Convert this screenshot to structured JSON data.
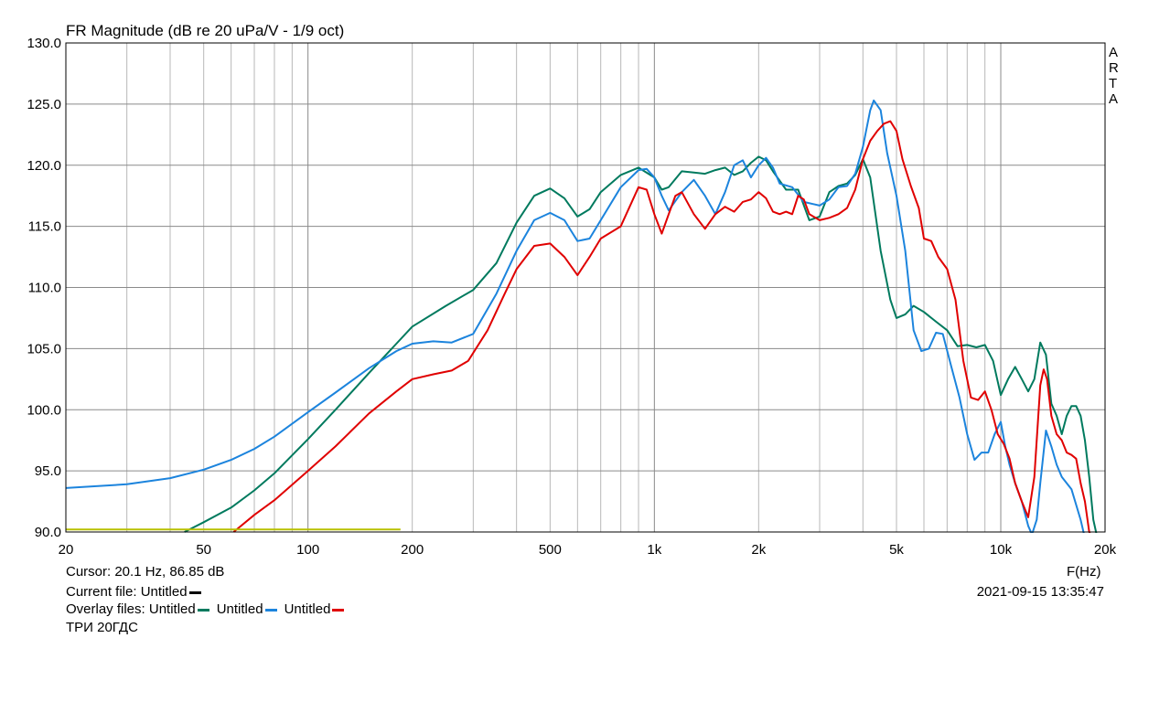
{
  "chart_data": {
    "type": "line",
    "title": "FR Magnitude (dB re 20 uPa/V - 1/9 oct)",
    "xlabel": "F(Hz)",
    "ylabel": "",
    "x_scale": "log",
    "xlim": [
      20,
      20000
    ],
    "ylim": [
      90,
      130
    ],
    "grid": true,
    "y_ticks": [
      "130.0",
      "125.0",
      "120.0",
      "115.0",
      "110.0",
      "105.0",
      "100.0",
      "95.0",
      "90.0"
    ],
    "y_tick_values": [
      130,
      125,
      120,
      115,
      110,
      105,
      100,
      95,
      90
    ],
    "x_ticks": [
      "20",
      "50",
      "100",
      "200",
      "500",
      "1k",
      "2k",
      "5k",
      "10k",
      "20k"
    ],
    "x_tick_values": [
      20,
      50,
      100,
      200,
      500,
      1000,
      2000,
      5000,
      10000,
      20000
    ],
    "series": [
      {
        "color": "#007a5e",
        "points": [
          [
            44,
            90
          ],
          [
            50,
            90.8
          ],
          [
            60,
            92
          ],
          [
            70,
            93.4
          ],
          [
            80,
            94.8
          ],
          [
            100,
            97.6
          ],
          [
            120,
            100
          ],
          [
            150,
            103
          ],
          [
            180,
            105.4
          ],
          [
            200,
            106.8
          ],
          [
            250,
            108.5
          ],
          [
            300,
            109.8
          ],
          [
            350,
            112
          ],
          [
            400,
            115.3
          ],
          [
            450,
            117.5
          ],
          [
            500,
            118.1
          ],
          [
            550,
            117.3
          ],
          [
            600,
            115.8
          ],
          [
            650,
            116.4
          ],
          [
            700,
            117.8
          ],
          [
            800,
            119.2
          ],
          [
            900,
            119.8
          ],
          [
            1000,
            119
          ],
          [
            1050,
            118
          ],
          [
            1100,
            118.2
          ],
          [
            1200,
            119.5
          ],
          [
            1300,
            119.4
          ],
          [
            1400,
            119.3
          ],
          [
            1500,
            119.6
          ],
          [
            1600,
            119.8
          ],
          [
            1700,
            119.2
          ],
          [
            1800,
            119.5
          ],
          [
            1900,
            120.2
          ],
          [
            2000,
            120.7
          ],
          [
            2100,
            120.4
          ],
          [
            2200,
            119.5
          ],
          [
            2400,
            118
          ],
          [
            2600,
            118
          ],
          [
            2800,
            115.5
          ],
          [
            3000,
            115.8
          ],
          [
            3200,
            117.8
          ],
          [
            3400,
            118.3
          ],
          [
            3600,
            118.5
          ],
          [
            3800,
            119.2
          ],
          [
            4000,
            120.5
          ],
          [
            4200,
            119
          ],
          [
            4500,
            113
          ],
          [
            4800,
            109
          ],
          [
            5000,
            107.5
          ],
          [
            5300,
            107.8
          ],
          [
            5600,
            108.5
          ],
          [
            6000,
            108
          ],
          [
            6500,
            107.2
          ],
          [
            7000,
            106.5
          ],
          [
            7500,
            105.2
          ],
          [
            8000,
            105.3
          ],
          [
            8500,
            105.1
          ],
          [
            9000,
            105.3
          ],
          [
            9500,
            104
          ],
          [
            10000,
            101.2
          ],
          [
            10500,
            102.5
          ],
          [
            11000,
            103.5
          ],
          [
            11500,
            102.5
          ],
          [
            12000,
            101.5
          ],
          [
            12500,
            102.5
          ],
          [
            13000,
            105.5
          ],
          [
            13500,
            104.5
          ],
          [
            14000,
            100.5
          ],
          [
            14500,
            99.5
          ],
          [
            15000,
            98
          ],
          [
            15500,
            99.5
          ],
          [
            16000,
            100.3
          ],
          [
            16500,
            100.3
          ],
          [
            17000,
            99.5
          ],
          [
            17500,
            97.5
          ],
          [
            18000,
            94.5
          ],
          [
            18500,
            91
          ],
          [
            19000,
            89.5
          ]
        ]
      },
      {
        "color": "#1c84dd",
        "points": [
          [
            20,
            93.6
          ],
          [
            30,
            93.9
          ],
          [
            40,
            94.4
          ],
          [
            50,
            95.1
          ],
          [
            60,
            95.9
          ],
          [
            70,
            96.8
          ],
          [
            80,
            97.8
          ],
          [
            100,
            99.8
          ],
          [
            120,
            101.4
          ],
          [
            150,
            103.4
          ],
          [
            180,
            104.8
          ],
          [
            200,
            105.4
          ],
          [
            230,
            105.6
          ],
          [
            260,
            105.5
          ],
          [
            300,
            106.2
          ],
          [
            350,
            109.5
          ],
          [
            400,
            113
          ],
          [
            450,
            115.5
          ],
          [
            500,
            116.1
          ],
          [
            550,
            115.5
          ],
          [
            600,
            113.8
          ],
          [
            650,
            114
          ],
          [
            700,
            115.5
          ],
          [
            800,
            118.2
          ],
          [
            900,
            119.6
          ],
          [
            950,
            119.7
          ],
          [
            1000,
            119
          ],
          [
            1050,
            117.5
          ],
          [
            1100,
            116.3
          ],
          [
            1200,
            117.8
          ],
          [
            1300,
            118.8
          ],
          [
            1400,
            117.5
          ],
          [
            1500,
            116
          ],
          [
            1600,
            117.8
          ],
          [
            1700,
            120
          ],
          [
            1800,
            120.4
          ],
          [
            1900,
            119
          ],
          [
            2000,
            120
          ],
          [
            2100,
            120.6
          ],
          [
            2200,
            119.8
          ],
          [
            2300,
            118.5
          ],
          [
            2500,
            118.2
          ],
          [
            2700,
            117
          ],
          [
            3000,
            116.7
          ],
          [
            3200,
            117.2
          ],
          [
            3400,
            118.2
          ],
          [
            3600,
            118.3
          ],
          [
            3800,
            119.3
          ],
          [
            4000,
            121.5
          ],
          [
            4200,
            124.5
          ],
          [
            4300,
            125.3
          ],
          [
            4500,
            124.5
          ],
          [
            4700,
            121
          ],
          [
            5000,
            117.5
          ],
          [
            5300,
            113
          ],
          [
            5600,
            106.5
          ],
          [
            5900,
            104.8
          ],
          [
            6200,
            105
          ],
          [
            6500,
            106.3
          ],
          [
            6800,
            106.2
          ],
          [
            7200,
            103.5
          ],
          [
            7600,
            101
          ],
          [
            8000,
            98
          ],
          [
            8400,
            95.9
          ],
          [
            8800,
            96.5
          ],
          [
            9200,
            96.5
          ],
          [
            9600,
            98
          ],
          [
            10000,
            99
          ],
          [
            10300,
            97
          ],
          [
            10600,
            95.5
          ],
          [
            11000,
            94
          ],
          [
            11500,
            92.5
          ],
          [
            12000,
            90.5
          ],
          [
            12300,
            89.8
          ],
          [
            12700,
            91
          ],
          [
            13000,
            94
          ],
          [
            13500,
            98.3
          ],
          [
            14000,
            97
          ],
          [
            14500,
            95.5
          ],
          [
            15000,
            94.5
          ],
          [
            16000,
            93.5
          ],
          [
            17000,
            91
          ],
          [
            17500,
            89.5
          ]
        ]
      },
      {
        "color": "#e00000",
        "points": [
          [
            61,
            90
          ],
          [
            70,
            91.4
          ],
          [
            80,
            92.6
          ],
          [
            100,
            95
          ],
          [
            120,
            97
          ],
          [
            150,
            99.7
          ],
          [
            180,
            101.5
          ],
          [
            200,
            102.5
          ],
          [
            230,
            102.9
          ],
          [
            260,
            103.2
          ],
          [
            290,
            104
          ],
          [
            330,
            106.5
          ],
          [
            370,
            109.5
          ],
          [
            400,
            111.5
          ],
          [
            450,
            113.4
          ],
          [
            500,
            113.6
          ],
          [
            550,
            112.5
          ],
          [
            600,
            111
          ],
          [
            650,
            112.5
          ],
          [
            700,
            114
          ],
          [
            800,
            115
          ],
          [
            900,
            118.2
          ],
          [
            950,
            118
          ],
          [
            1000,
            116
          ],
          [
            1050,
            114.4
          ],
          [
            1100,
            116
          ],
          [
            1150,
            117.5
          ],
          [
            1200,
            117.8
          ],
          [
            1300,
            116
          ],
          [
            1400,
            114.8
          ],
          [
            1500,
            116
          ],
          [
            1600,
            116.6
          ],
          [
            1700,
            116.2
          ],
          [
            1800,
            117
          ],
          [
            1900,
            117.2
          ],
          [
            2000,
            117.8
          ],
          [
            2100,
            117.3
          ],
          [
            2200,
            116.2
          ],
          [
            2300,
            116
          ],
          [
            2400,
            116.2
          ],
          [
            2500,
            116
          ],
          [
            2600,
            117.5
          ],
          [
            2700,
            117.2
          ],
          [
            2800,
            116
          ],
          [
            3000,
            115.5
          ],
          [
            3200,
            115.7
          ],
          [
            3400,
            116
          ],
          [
            3600,
            116.5
          ],
          [
            3800,
            118
          ],
          [
            4000,
            120.5
          ],
          [
            4200,
            122
          ],
          [
            4400,
            122.8
          ],
          [
            4600,
            123.4
          ],
          [
            4800,
            123.6
          ],
          [
            5000,
            122.8
          ],
          [
            5200,
            120.5
          ],
          [
            5500,
            118.3
          ],
          [
            5800,
            116.5
          ],
          [
            6000,
            114
          ],
          [
            6300,
            113.8
          ],
          [
            6600,
            112.5
          ],
          [
            7000,
            111.5
          ],
          [
            7400,
            109
          ],
          [
            7800,
            104
          ],
          [
            8200,
            101
          ],
          [
            8600,
            100.8
          ],
          [
            9000,
            101.5
          ],
          [
            9400,
            100
          ],
          [
            9800,
            98
          ],
          [
            10200,
            97.2
          ],
          [
            10600,
            96
          ],
          [
            11000,
            94
          ],
          [
            11500,
            92.5
          ],
          [
            12000,
            91.2
          ],
          [
            12500,
            94.5
          ],
          [
            13000,
            102
          ],
          [
            13300,
            103.3
          ],
          [
            13600,
            102.5
          ],
          [
            14000,
            99.5
          ],
          [
            14500,
            98
          ],
          [
            15000,
            97.5
          ],
          [
            15500,
            96.5
          ],
          [
            16000,
            96.3
          ],
          [
            16500,
            96
          ],
          [
            17000,
            94
          ],
          [
            17500,
            92.5
          ],
          [
            18000,
            90
          ],
          [
            18300,
            89.6
          ]
        ]
      },
      {
        "color": "#b8c000",
        "points": [
          [
            20,
            90.2
          ],
          [
            185,
            90.2
          ]
        ]
      }
    ]
  },
  "arta_label": [
    "A",
    "R",
    "T",
    "A"
  ],
  "footer": {
    "cursor": "Cursor: 20.1 Hz, 86.85 dB",
    "current_file_label": "Current file: Untitled",
    "current_file_color": "#000000",
    "overlay_prefix": "Overlay files: ",
    "overlays": [
      {
        "name": "Untitled",
        "color": "#007a5e"
      },
      {
        "name": "Untitled",
        "color": "#1c84dd"
      },
      {
        "name": "Untitled",
        "color": "#e00000"
      }
    ],
    "note": "ТРИ 20ГДС",
    "datetime": "2021-09-15   13:35:47"
  }
}
